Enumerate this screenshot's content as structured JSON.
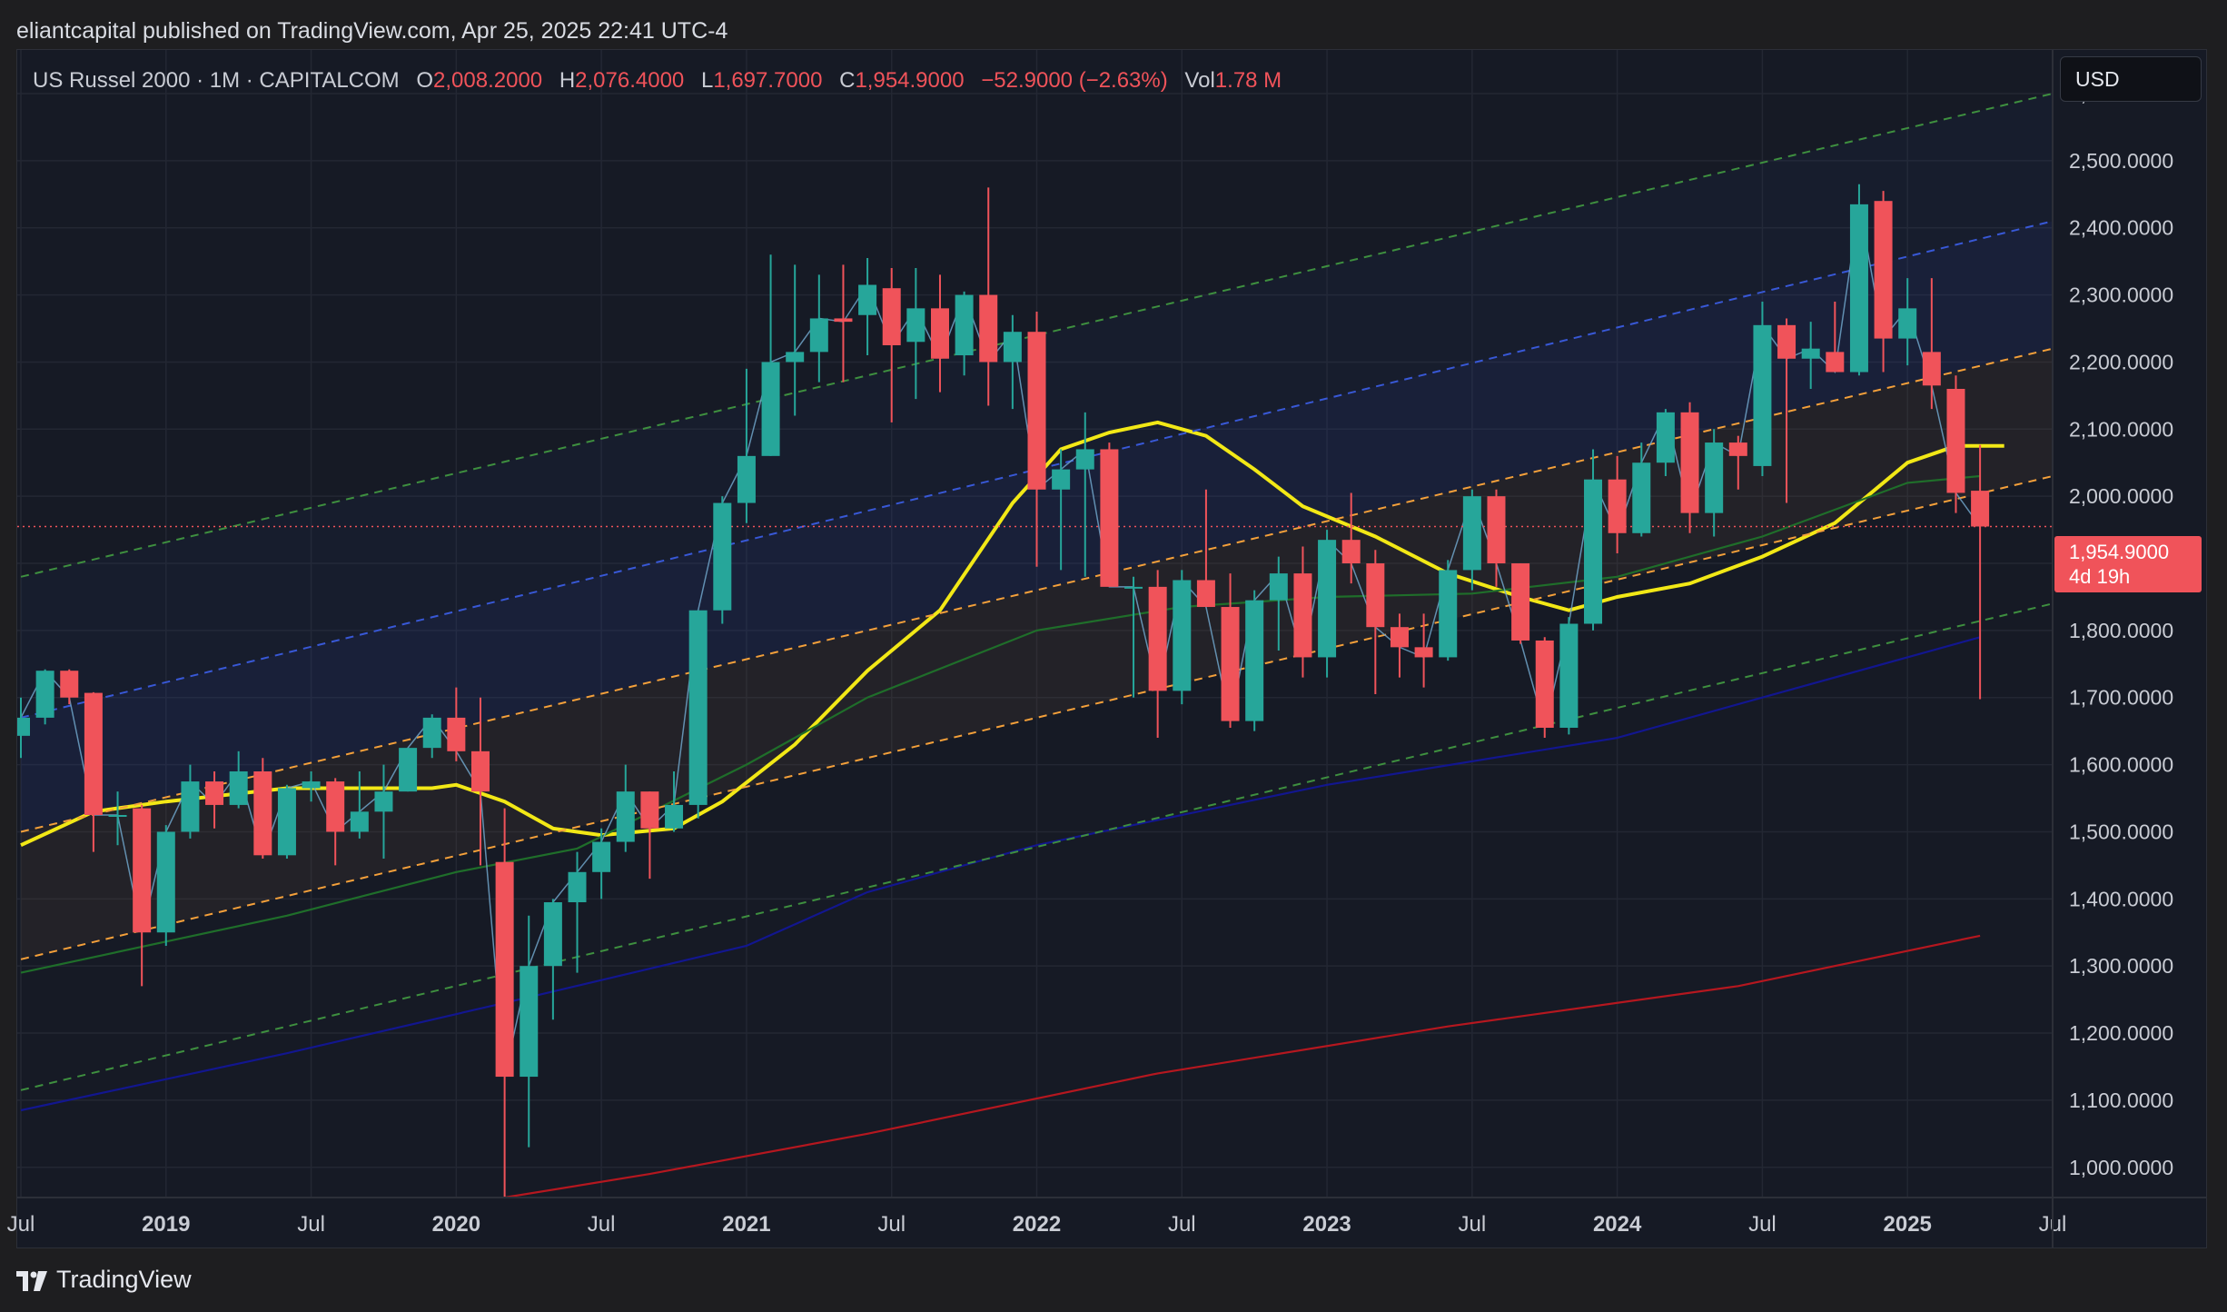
{
  "publisher_line": "eliantcapital published on TradingView.com, Apr 25, 2025 22:41 UTC-4",
  "legend": {
    "symbol": "US Russel 2000 · 1M · CAPITALCOM",
    "o_label": "O",
    "o_value": "2,008.2000",
    "h_label": "H",
    "h_value": "2,076.4000",
    "l_label": "L",
    "l_value": "1,697.7000",
    "c_label": "C",
    "c_value": "1,954.9000",
    "change": "−52.9000 (−2.63%)",
    "vol_label": "Vol",
    "vol_value": "1.78 M"
  },
  "currency_button": "USD",
  "last_price": {
    "value": "1,954.9000",
    "countdown": "4d 19h"
  },
  "footer_brand": "TradingView",
  "colors": {
    "up": "#26a69a",
    "down": "#f0535a",
    "background": "#161a25",
    "ma_yellow": "#f2e816",
    "ma_green": "#1f6e2a",
    "ma_blue": "#12168f",
    "ma_red": "#b5171f",
    "channel_green": "#3e8f3f",
    "channel_blue": "#3858d6",
    "channel_orange": "#f4a03a"
  },
  "chart_data": {
    "type": "candlestick",
    "title": "US Russel 2000 · 1M · CAPITALCOM",
    "y_ticks": [
      "1,000.0000",
      "1,100.0000",
      "1,200.0000",
      "1,300.0000",
      "1,400.0000",
      "1,500.0000",
      "1,600.0000",
      "1,700.0000",
      "1,800.0000",
      "1,900.0000",
      "2,000.0000",
      "2,100.0000",
      "2,200.0000",
      "2,300.0000",
      "2,400.0000",
      "2,500.0000",
      "2,600.0000"
    ],
    "ylim": [
      955,
      2665
    ],
    "x_ticks": [
      {
        "label": "Jul",
        "date": "2018-07"
      },
      {
        "label": "2019",
        "date": "2019-01"
      },
      {
        "label": "Jul",
        "date": "2019-07"
      },
      {
        "label": "2020",
        "date": "2020-01"
      },
      {
        "label": "Jul",
        "date": "2020-07"
      },
      {
        "label": "2021",
        "date": "2021-01"
      },
      {
        "label": "Jul",
        "date": "2021-07"
      },
      {
        "label": "2022",
        "date": "2022-01"
      },
      {
        "label": "Jul",
        "date": "2022-07"
      },
      {
        "label": "2023",
        "date": "2023-01"
      },
      {
        "label": "Jul",
        "date": "2023-07"
      },
      {
        "label": "2024",
        "date": "2024-01"
      },
      {
        "label": "Jul",
        "date": "2024-07"
      },
      {
        "label": "2025",
        "date": "2025-01"
      },
      {
        "label": "Jul",
        "date": "2025-07"
      }
    ],
    "x_range": [
      "2018-07",
      "2025-07"
    ],
    "last_price": 1954.9,
    "candles": [
      {
        "date": "2018-07",
        "o": 1643,
        "h": 1700,
        "l": 1610,
        "c": 1670
      },
      {
        "date": "2018-08",
        "o": 1670,
        "h": 1742,
        "l": 1660,
        "c": 1740
      },
      {
        "date": "2018-09",
        "o": 1740,
        "h": 1742,
        "l": 1690,
        "c": 1700
      },
      {
        "date": "2018-10",
        "o": 1707,
        "h": 1708,
        "l": 1470,
        "c": 1525
      },
      {
        "date": "2018-11",
        "o": 1525,
        "h": 1560,
        "l": 1480,
        "c": 1525
      },
      {
        "date": "2018-12",
        "o": 1535,
        "h": 1540,
        "l": 1270,
        "c": 1350
      },
      {
        "date": "2019-01",
        "o": 1350,
        "h": 1510,
        "l": 1330,
        "c": 1500
      },
      {
        "date": "2019-02",
        "o": 1500,
        "h": 1600,
        "l": 1490,
        "c": 1575
      },
      {
        "date": "2019-03",
        "o": 1575,
        "h": 1590,
        "l": 1505,
        "c": 1540
      },
      {
        "date": "2019-04",
        "o": 1540,
        "h": 1620,
        "l": 1535,
        "c": 1590
      },
      {
        "date": "2019-05",
        "o": 1590,
        "h": 1610,
        "l": 1460,
        "c": 1465
      },
      {
        "date": "2019-06",
        "o": 1465,
        "h": 1570,
        "l": 1460,
        "c": 1565
      },
      {
        "date": "2019-07",
        "o": 1565,
        "h": 1590,
        "l": 1545,
        "c": 1575
      },
      {
        "date": "2019-08",
        "o": 1575,
        "h": 1580,
        "l": 1450,
        "c": 1500
      },
      {
        "date": "2019-09",
        "o": 1500,
        "h": 1590,
        "l": 1490,
        "c": 1530
      },
      {
        "date": "2019-10",
        "o": 1530,
        "h": 1600,
        "l": 1460,
        "c": 1560
      },
      {
        "date": "2019-11",
        "o": 1560,
        "h": 1625,
        "l": 1560,
        "c": 1625
      },
      {
        "date": "2019-12",
        "o": 1625,
        "h": 1675,
        "l": 1610,
        "c": 1670
      },
      {
        "date": "2020-01",
        "o": 1670,
        "h": 1715,
        "l": 1605,
        "c": 1620
      },
      {
        "date": "2020-02",
        "o": 1620,
        "h": 1700,
        "l": 1450,
        "c": 1560
      },
      {
        "date": "2020-03",
        "o": 1455,
        "h": 1535,
        "l": 955,
        "c": 1135
      },
      {
        "date": "2020-04",
        "o": 1135,
        "h": 1375,
        "l": 1030,
        "c": 1300
      },
      {
        "date": "2020-05",
        "o": 1300,
        "h": 1400,
        "l": 1220,
        "c": 1395
      },
      {
        "date": "2020-06",
        "o": 1395,
        "h": 1470,
        "l": 1290,
        "c": 1440
      },
      {
        "date": "2020-07",
        "o": 1440,
        "h": 1505,
        "l": 1400,
        "c": 1485
      },
      {
        "date": "2020-08",
        "o": 1485,
        "h": 1600,
        "l": 1470,
        "c": 1560
      },
      {
        "date": "2020-09",
        "o": 1560,
        "h": 1560,
        "l": 1430,
        "c": 1505
      },
      {
        "date": "2020-10",
        "o": 1505,
        "h": 1590,
        "l": 1500,
        "c": 1540
      },
      {
        "date": "2020-11",
        "o": 1540,
        "h": 1830,
        "l": 1520,
        "c": 1830
      },
      {
        "date": "2020-12",
        "o": 1830,
        "h": 2000,
        "l": 1810,
        "c": 1990
      },
      {
        "date": "2021-01",
        "o": 1990,
        "h": 2190,
        "l": 1960,
        "c": 2060
      },
      {
        "date": "2021-02",
        "o": 2060,
        "h": 2360,
        "l": 2060,
        "c": 2200
      },
      {
        "date": "2021-03",
        "o": 2200,
        "h": 2345,
        "l": 2120,
        "c": 2215
      },
      {
        "date": "2021-04",
        "o": 2215,
        "h": 2330,
        "l": 2170,
        "c": 2265
      },
      {
        "date": "2021-05",
        "o": 2265,
        "h": 2345,
        "l": 2170,
        "c": 2260
      },
      {
        "date": "2021-06",
        "o": 2270,
        "h": 2355,
        "l": 2210,
        "c": 2315
      },
      {
        "date": "2021-07",
        "o": 2310,
        "h": 2340,
        "l": 2110,
        "c": 2225
      },
      {
        "date": "2021-08",
        "o": 2230,
        "h": 2340,
        "l": 2145,
        "c": 2280
      },
      {
        "date": "2021-09",
        "o": 2280,
        "h": 2330,
        "l": 2155,
        "c": 2205
      },
      {
        "date": "2021-10",
        "o": 2210,
        "h": 2305,
        "l": 2180,
        "c": 2300
      },
      {
        "date": "2021-11",
        "o": 2300,
        "h": 2460,
        "l": 2135,
        "c": 2200
      },
      {
        "date": "2021-12",
        "o": 2200,
        "h": 2270,
        "l": 2130,
        "c": 2245
      },
      {
        "date": "2022-01",
        "o": 2245,
        "h": 2275,
        "l": 1895,
        "c": 2010
      },
      {
        "date": "2022-02",
        "o": 2010,
        "h": 2070,
        "l": 1890,
        "c": 2040
      },
      {
        "date": "2022-03",
        "o": 2040,
        "h": 2125,
        "l": 1880,
        "c": 2070
      },
      {
        "date": "2022-04",
        "o": 2070,
        "h": 2080,
        "l": 1870,
        "c": 1865
      },
      {
        "date": "2022-05",
        "o": 1865,
        "h": 1880,
        "l": 1700,
        "c": 1865
      },
      {
        "date": "2022-06",
        "o": 1865,
        "h": 1890,
        "l": 1640,
        "c": 1710
      },
      {
        "date": "2022-07",
        "o": 1710,
        "h": 1890,
        "l": 1690,
        "c": 1875
      },
      {
        "date": "2022-08",
        "o": 1875,
        "h": 2010,
        "l": 1835,
        "c": 1835
      },
      {
        "date": "2022-09",
        "o": 1835,
        "h": 1885,
        "l": 1655,
        "c": 1665
      },
      {
        "date": "2022-10",
        "o": 1665,
        "h": 1860,
        "l": 1650,
        "c": 1845
      },
      {
        "date": "2022-11",
        "o": 1845,
        "h": 1910,
        "l": 1770,
        "c": 1885
      },
      {
        "date": "2022-12",
        "o": 1885,
        "h": 1925,
        "l": 1730,
        "c": 1760
      },
      {
        "date": "2023-01",
        "o": 1760,
        "h": 1950,
        "l": 1730,
        "c": 1935
      },
      {
        "date": "2023-02",
        "o": 1935,
        "h": 2005,
        "l": 1870,
        "c": 1900
      },
      {
        "date": "2023-03",
        "o": 1900,
        "h": 1920,
        "l": 1705,
        "c": 1805
      },
      {
        "date": "2023-04",
        "o": 1805,
        "h": 1825,
        "l": 1730,
        "c": 1775
      },
      {
        "date": "2023-05",
        "o": 1775,
        "h": 1825,
        "l": 1715,
        "c": 1760
      },
      {
        "date": "2023-06",
        "o": 1760,
        "h": 1905,
        "l": 1755,
        "c": 1890
      },
      {
        "date": "2023-07",
        "o": 1890,
        "h": 2010,
        "l": 1860,
        "c": 2000
      },
      {
        "date": "2023-08",
        "o": 2000,
        "h": 2010,
        "l": 1865,
        "c": 1900
      },
      {
        "date": "2023-09",
        "o": 1900,
        "h": 1900,
        "l": 1780,
        "c": 1785
      },
      {
        "date": "2023-10",
        "o": 1785,
        "h": 1790,
        "l": 1640,
        "c": 1655
      },
      {
        "date": "2023-11",
        "o": 1655,
        "h": 1820,
        "l": 1645,
        "c": 1810
      },
      {
        "date": "2023-12",
        "o": 1810,
        "h": 2070,
        "l": 1800,
        "c": 2025
      },
      {
        "date": "2024-01",
        "o": 2025,
        "h": 2060,
        "l": 1915,
        "c": 1945
      },
      {
        "date": "2024-02",
        "o": 1945,
        "h": 2080,
        "l": 1940,
        "c": 2050
      },
      {
        "date": "2024-03",
        "o": 2050,
        "h": 2130,
        "l": 2030,
        "c": 2125
      },
      {
        "date": "2024-04",
        "o": 2125,
        "h": 2140,
        "l": 1945,
        "c": 1975
      },
      {
        "date": "2024-05",
        "o": 1975,
        "h": 2100,
        "l": 1940,
        "c": 2080
      },
      {
        "date": "2024-06",
        "o": 2080,
        "h": 2090,
        "l": 2010,
        "c": 2060
      },
      {
        "date": "2024-07",
        "o": 2045,
        "h": 2290,
        "l": 2030,
        "c": 2255
      },
      {
        "date": "2024-08",
        "o": 2255,
        "h": 2265,
        "l": 1990,
        "c": 2205
      },
      {
        "date": "2024-09",
        "o": 2205,
        "h": 2260,
        "l": 2160,
        "c": 2220
      },
      {
        "date": "2024-10",
        "o": 2215,
        "h": 2290,
        "l": 2185,
        "c": 2185
      },
      {
        "date": "2024-11",
        "o": 2185,
        "h": 2465,
        "l": 2180,
        "c": 2435
      },
      {
        "date": "2024-12",
        "o": 2440,
        "h": 2455,
        "l": 2185,
        "c": 2235
      },
      {
        "date": "2025-01",
        "o": 2235,
        "h": 2325,
        "l": 2195,
        "c": 2280
      },
      {
        "date": "2025-02",
        "o": 2215,
        "h": 2325,
        "l": 2130,
        "c": 2165
      },
      {
        "date": "2025-03",
        "o": 2160,
        "h": 2180,
        "l": 1975,
        "c": 2005
      },
      {
        "date": "2025-04",
        "o": 2008.2,
        "h": 2076.4,
        "l": 1697.7,
        "c": 1954.9
      }
    ],
    "moving_averages": [
      {
        "color": "#f2e816",
        "points": [
          [
            "2018-07",
            1480
          ],
          [
            "2018-10",
            1530
          ],
          [
            "2019-01",
            1545
          ],
          [
            "2019-06",
            1565
          ],
          [
            "2019-12",
            1565
          ],
          [
            "2020-01",
            1570
          ],
          [
            "2020-03",
            1545
          ],
          [
            "2020-05",
            1505
          ],
          [
            "2020-07",
            1495
          ],
          [
            "2020-10",
            1505
          ],
          [
            "2020-12",
            1545
          ],
          [
            "2021-03",
            1630
          ],
          [
            "2021-06",
            1740
          ],
          [
            "2021-09",
            1830
          ],
          [
            "2021-12",
            1990
          ],
          [
            "2022-02",
            2070
          ],
          [
            "2022-04",
            2095
          ],
          [
            "2022-06",
            2110
          ],
          [
            "2022-08",
            2090
          ],
          [
            "2022-10",
            2040
          ],
          [
            "2022-12",
            1985
          ],
          [
            "2023-03",
            1940
          ],
          [
            "2023-06",
            1885
          ],
          [
            "2023-09",
            1850
          ],
          [
            "2023-11",
            1830
          ],
          [
            "2024-01",
            1850
          ],
          [
            "2024-04",
            1870
          ],
          [
            "2024-07",
            1910
          ],
          [
            "2024-10",
            1960
          ],
          [
            "2025-01",
            2050
          ],
          [
            "2025-03",
            2075
          ],
          [
            "2025-05",
            2075
          ]
        ]
      },
      {
        "color": "#1f6e2a",
        "points": [
          [
            "2018-07",
            1290
          ],
          [
            "2019-06",
            1375
          ],
          [
            "2020-01",
            1440
          ],
          [
            "2020-06",
            1475
          ],
          [
            "2021-01",
            1600
          ],
          [
            "2021-06",
            1700
          ],
          [
            "2022-01",
            1800
          ],
          [
            "2022-07",
            1835
          ],
          [
            "2023-01",
            1850
          ],
          [
            "2023-07",
            1855
          ],
          [
            "2024-01",
            1880
          ],
          [
            "2024-07",
            1940
          ],
          [
            "2025-01",
            2020
          ],
          [
            "2025-04",
            2030
          ]
        ]
      },
      {
        "color": "#12168f",
        "points": [
          [
            "2018-07",
            1085
          ],
          [
            "2019-06",
            1170
          ],
          [
            "2020-03",
            1245
          ],
          [
            "2021-01",
            1330
          ],
          [
            "2021-06",
            1410
          ],
          [
            "2022-01",
            1480
          ],
          [
            "2023-01",
            1570
          ],
          [
            "2024-01",
            1640
          ],
          [
            "2024-07",
            1700
          ],
          [
            "2025-04",
            1790
          ]
        ]
      },
      {
        "color": "#b5171f",
        "points": [
          [
            "2020-03",
            955
          ],
          [
            "2020-09",
            990
          ],
          [
            "2021-06",
            1050
          ],
          [
            "2022-06",
            1140
          ],
          [
            "2023-06",
            1210
          ],
          [
            "2024-06",
            1270
          ],
          [
            "2025-04",
            1345
          ]
        ]
      }
    ],
    "channel_lines": [
      {
        "color": "#3e8f3f",
        "from": [
          "2018-07",
          1880
        ],
        "to": [
          "2025-07",
          2600
        ]
      },
      {
        "color": "#3858d6",
        "from": [
          "2018-07",
          1670
        ],
        "to": [
          "2025-07",
          2410
        ]
      },
      {
        "color": "#f4a03a",
        "from": [
          "2018-07",
          1500
        ],
        "to": [
          "2025-07",
          2220
        ]
      },
      {
        "color": "#f4a03a",
        "from": [
          "2018-07",
          1310
        ],
        "to": [
          "2025-07",
          2030
        ]
      },
      {
        "color": "#3e8f3f",
        "from": [
          "2018-07",
          1115
        ],
        "to": [
          "2025-07",
          1840
        ]
      }
    ]
  }
}
